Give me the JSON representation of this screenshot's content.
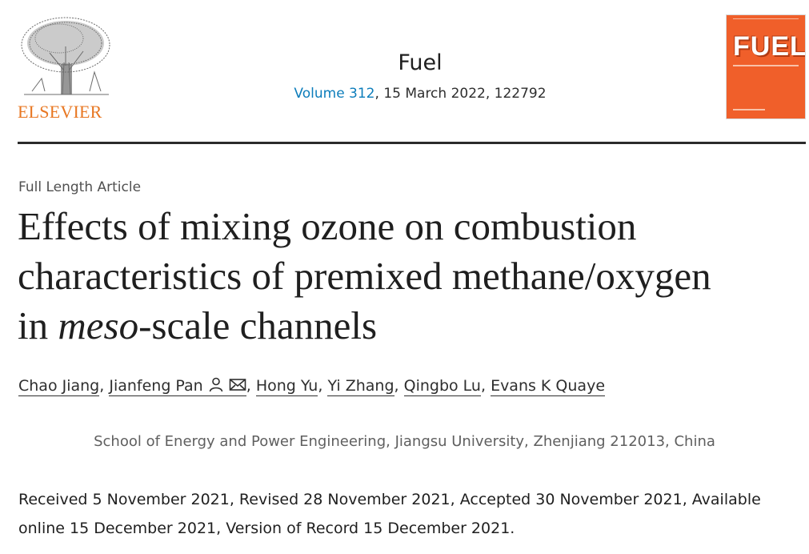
{
  "publisher": {
    "name": "ELSEVIER",
    "logo_icon": "elsevier-tree-icon",
    "brand_color": "#e87722"
  },
  "journal": {
    "name": "Fuel",
    "volume_link": "Volume 312",
    "issue_rest": ", 15 March 2022, 122792",
    "link_color": "#0c7dbb",
    "cover": {
      "title": "FUEL",
      "color": "#f05f2a"
    }
  },
  "article": {
    "type": "Full Length Article",
    "title_line1": "Effects of mixing ozone on combustion",
    "title_line2": "characteristics of premixed methane/oxygen",
    "title_line3_pre": "in ",
    "title_line3_italic": "meso",
    "title_line3_post": "-scale channels"
  },
  "authors": [
    {
      "name": "Chao Jiang"
    },
    {
      "name": "Jianfeng Pan",
      "icons": [
        "person-icon",
        "email-icon"
      ]
    },
    {
      "name": "Hong Yu"
    },
    {
      "name": "Yi Zhang"
    },
    {
      "name": "Qingbo Lu"
    },
    {
      "name": "Evans K Quaye"
    }
  ],
  "author_separator": ", ",
  "affiliation": "School of Energy and Power Engineering, Jiangsu University, Zhenjiang 212013, China",
  "history": "Received 5 November 2021, Revised 28 November 2021, Accepted 30 November 2021, Available online 15 December 2021, Version of Record 15 December 2021."
}
